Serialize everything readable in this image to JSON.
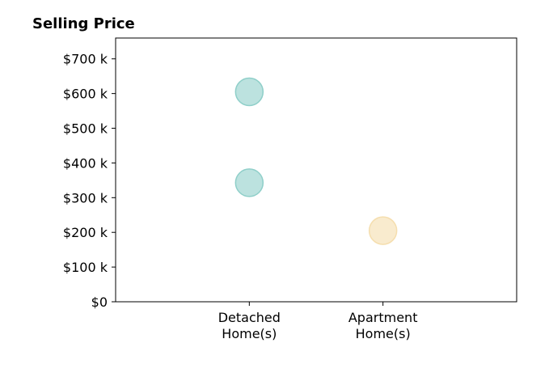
{
  "chart_data": {
    "type": "scatter",
    "title": "Selling Price",
    "xlabel": "",
    "ylabel": "",
    "categories": [
      "Detached Home(s)",
      "Apartment Home(s)"
    ],
    "category_lines": [
      [
        "Detached",
        "Home(s)"
      ],
      [
        "Apartment",
        "Home(s)"
      ]
    ],
    "x_range": [
      -1,
      2
    ],
    "ylim": [
      0,
      760000
    ],
    "y_ticks": [
      0,
      100000,
      200000,
      300000,
      400000,
      500000,
      600000,
      700000
    ],
    "y_tick_labels": [
      "$0",
      "$100 k",
      "$200 k",
      "$300 k",
      "$400 k",
      "$500 k",
      "$600 k",
      "$700 k"
    ],
    "grid": false,
    "legend": "none",
    "points": [
      {
        "category": "Detached Home(s)",
        "value": 605000,
        "color": "#8fcfc9"
      },
      {
        "category": "Detached Home(s)",
        "value": 343000,
        "color": "#8fcfc9"
      },
      {
        "category": "Apartment Home(s)",
        "value": 205000,
        "color": "#f5deae"
      }
    ]
  }
}
